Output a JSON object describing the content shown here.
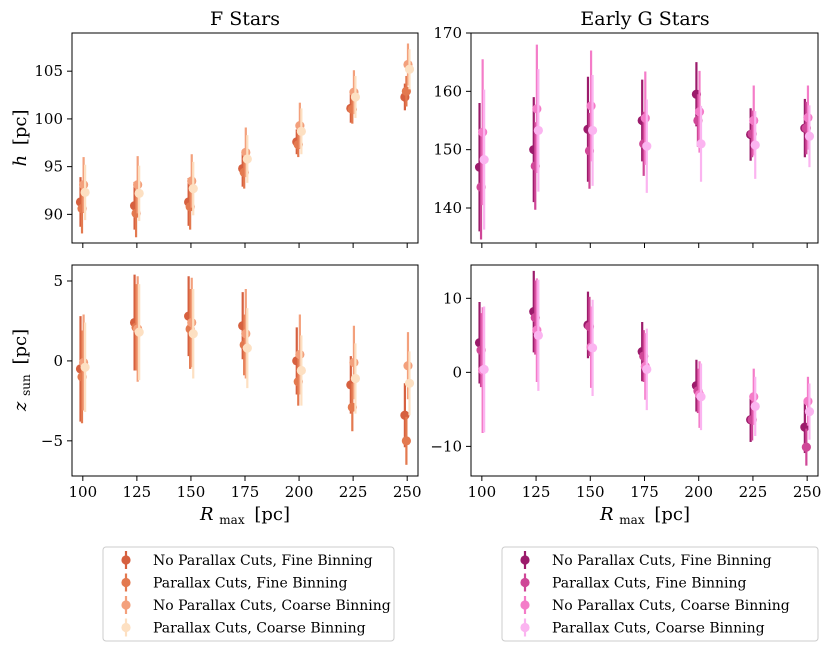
{
  "figure": {
    "titles": [
      "F Stars",
      "Early G Stars"
    ],
    "xlabel_main": "R",
    "xlabel_sub": "max",
    "xlabel_unit": "[pc]",
    "ylabel_h_main": "h",
    "ylabel_h_unit": "[pc]",
    "ylabel_z_main": "z",
    "ylabel_z_sub": "sun",
    "ylabel_z_unit": "[pc]"
  },
  "chart_data": [
    {
      "type": "scatter",
      "panel": "top-left",
      "title": "F Stars",
      "xlabel": "",
      "ylabel": "h [pc]",
      "xlim": [
        95,
        255
      ],
      "ylim": [
        87,
        109
      ],
      "xticks": [
        100,
        125,
        150,
        175,
        200,
        225,
        250
      ],
      "yticks": [
        90,
        95,
        100,
        105
      ],
      "x": [
        100,
        125,
        150,
        175,
        200,
        225,
        250
      ],
      "series": [
        {
          "name": "No Parallax Cuts, Fine Binning",
          "color": "#d6603f",
          "values": [
            91.3,
            90.9,
            91.3,
            94.8,
            97.6,
            101.1,
            102.3
          ],
          "err": [
            2.6,
            2.5,
            2.5,
            1.9,
            1.3,
            1.5,
            1.4
          ]
        },
        {
          "name": "Parallax Cuts, Fine Binning",
          "color": "#e3794f",
          "values": [
            90.6,
            90.1,
            90.8,
            94.4,
            97.3,
            101.0,
            102.9
          ],
          "err": [
            2.6,
            2.5,
            2.4,
            1.7,
            1.3,
            1.5,
            1.6
          ]
        },
        {
          "name": "No Parallax Cuts, Coarse Binning",
          "color": "#f3a07c",
          "values": [
            93.1,
            93.1,
            93.5,
            96.5,
            99.3,
            102.8,
            105.7
          ],
          "err": [
            2.9,
            3.0,
            2.8,
            2.6,
            2.4,
            2.3,
            2.2
          ]
        },
        {
          "name": "Parallax Cuts, Coarse Binning",
          "color": "#fde0c2",
          "values": [
            92.3,
            92.2,
            92.7,
            95.8,
            98.7,
            102.3,
            105.2
          ],
          "err": [
            2.9,
            2.9,
            2.8,
            2.5,
            2.4,
            2.2,
            2.1
          ]
        }
      ]
    },
    {
      "type": "scatter",
      "panel": "top-right",
      "title": "Early G Stars",
      "xlabel": "",
      "ylabel": "",
      "xlim": [
        95,
        255
      ],
      "ylim": [
        134,
        170
      ],
      "xticks": [
        100,
        125,
        150,
        175,
        200,
        225,
        250
      ],
      "yticks": [
        140,
        150,
        160,
        170
      ],
      "x": [
        100,
        125,
        150,
        175,
        200,
        225,
        250
      ],
      "series": [
        {
          "name": "No Parallax Cuts, Fine Binning",
          "color": "#9b1b6b",
          "values": [
            147.0,
            150.0,
            153.5,
            155.0,
            159.5,
            152.6,
            153.7
          ],
          "err": [
            11.0,
            9.0,
            9.0,
            7.0,
            5.5,
            4.5,
            5.0
          ]
        },
        {
          "name": "Parallax Cuts, Fine Binning",
          "color": "#cf4797",
          "values": [
            143.6,
            147.2,
            149.8,
            151.0,
            155.0,
            152.7,
            153.7
          ],
          "err": [
            9.0,
            7.5,
            6.5,
            5.5,
            4.5,
            4.0,
            4.5
          ]
        },
        {
          "name": "No Parallax Cuts, Coarse Binning",
          "color": "#f47cc8",
          "values": [
            153.0,
            157.0,
            157.5,
            155.4,
            156.5,
            155.0,
            155.5
          ],
          "err": [
            12.5,
            11.0,
            9.5,
            8.0,
            7.0,
            6.0,
            5.5
          ]
        },
        {
          "name": "Parallax Cuts, Coarse Binning",
          "color": "#fbb4f0",
          "values": [
            148.3,
            153.3,
            153.3,
            150.6,
            151.0,
            150.8,
            152.3
          ],
          "err": [
            12.0,
            10.5,
            9.5,
            8.0,
            6.5,
            5.8,
            5.3
          ]
        }
      ]
    },
    {
      "type": "scatter",
      "panel": "bottom-left",
      "title": "",
      "xlabel": "R_max [pc]",
      "ylabel": "z_sun [pc]",
      "xlim": [
        95,
        255
      ],
      "ylim": [
        -7.2,
        6.0
      ],
      "xticks": [
        100,
        125,
        150,
        175,
        200,
        225,
        250
      ],
      "yticks": [
        -5,
        0,
        5
      ],
      "x": [
        100,
        125,
        150,
        175,
        200,
        225,
        250
      ],
      "series": [
        {
          "name": "No Parallax Cuts, Fine Binning",
          "color": "#d6603f",
          "values": [
            -0.5,
            2.4,
            2.8,
            2.2,
            0.0,
            -1.5,
            -3.4
          ],
          "err": [
            3.3,
            3.0,
            2.5,
            2.1,
            2.1,
            1.8,
            2.0
          ]
        },
        {
          "name": "Parallax Cuts, Fine Binning",
          "color": "#e3794f",
          "values": [
            -1.0,
            2.1,
            2.0,
            1.0,
            -1.3,
            -2.9,
            -5.0
          ],
          "err": [
            2.9,
            2.7,
            2.5,
            1.9,
            1.5,
            1.5,
            1.5
          ]
        },
        {
          "name": "No Parallax Cuts, Coarse Binning",
          "color": "#f3a07c",
          "values": [
            -0.1,
            2.0,
            2.4,
            1.7,
            0.4,
            -0.1,
            -0.3
          ],
          "err": [
            3.0,
            3.3,
            2.8,
            2.8,
            2.5,
            2.3,
            2.1
          ]
        },
        {
          "name": "Parallax Cuts, Coarse Binning",
          "color": "#fde0c2",
          "values": [
            -0.4,
            1.8,
            1.7,
            0.8,
            -0.6,
            -1.1,
            -1.4
          ],
          "err": [
            2.8,
            3.0,
            2.8,
            2.5,
            2.2,
            2.2,
            2.0
          ]
        }
      ]
    },
    {
      "type": "scatter",
      "panel": "bottom-right",
      "title": "",
      "xlabel": "R_max [pc]",
      "ylabel": "",
      "xlim": [
        95,
        255
      ],
      "ylim": [
        -14,
        14.5
      ],
      "xticks": [
        100,
        125,
        150,
        175,
        200,
        225,
        250
      ],
      "yticks": [
        -10,
        0,
        10
      ],
      "x": [
        100,
        125,
        150,
        175,
        200,
        225,
        250
      ],
      "series": [
        {
          "name": "No Parallax Cuts, Fine Binning",
          "color": "#9b1b6b",
          "values": [
            4.0,
            8.2,
            6.4,
            2.8,
            -1.8,
            -6.4,
            -7.4
          ],
          "err": [
            5.5,
            5.5,
            4.5,
            4.0,
            3.5,
            3.0,
            3.5
          ]
        },
        {
          "name": "Parallax Cuts, Fine Binning",
          "color": "#cf4797",
          "values": [
            3.0,
            7.4,
            6.2,
            2.2,
            -2.5,
            -6.4,
            -10.1
          ],
          "err": [
            5.0,
            5.0,
            4.0,
            3.5,
            3.0,
            2.8,
            2.5
          ]
        },
        {
          "name": "No Parallax Cuts, Coarse Binning",
          "color": "#f47cc8",
          "values": [
            0.3,
            5.7,
            3.4,
            0.8,
            -3.0,
            -3.3,
            -3.9
          ],
          "err": [
            8.5,
            7.0,
            5.5,
            4.5,
            4.5,
            3.8,
            3.3
          ]
        },
        {
          "name": "Parallax Cuts, Coarse Binning",
          "color": "#fbb4f0",
          "values": [
            0.4,
            5.0,
            3.3,
            0.4,
            -3.3,
            -4.6,
            -5.3
          ],
          "err": [
            8.5,
            7.5,
            6.5,
            5.5,
            4.5,
            4.0,
            3.8
          ]
        }
      ]
    }
  ]
}
